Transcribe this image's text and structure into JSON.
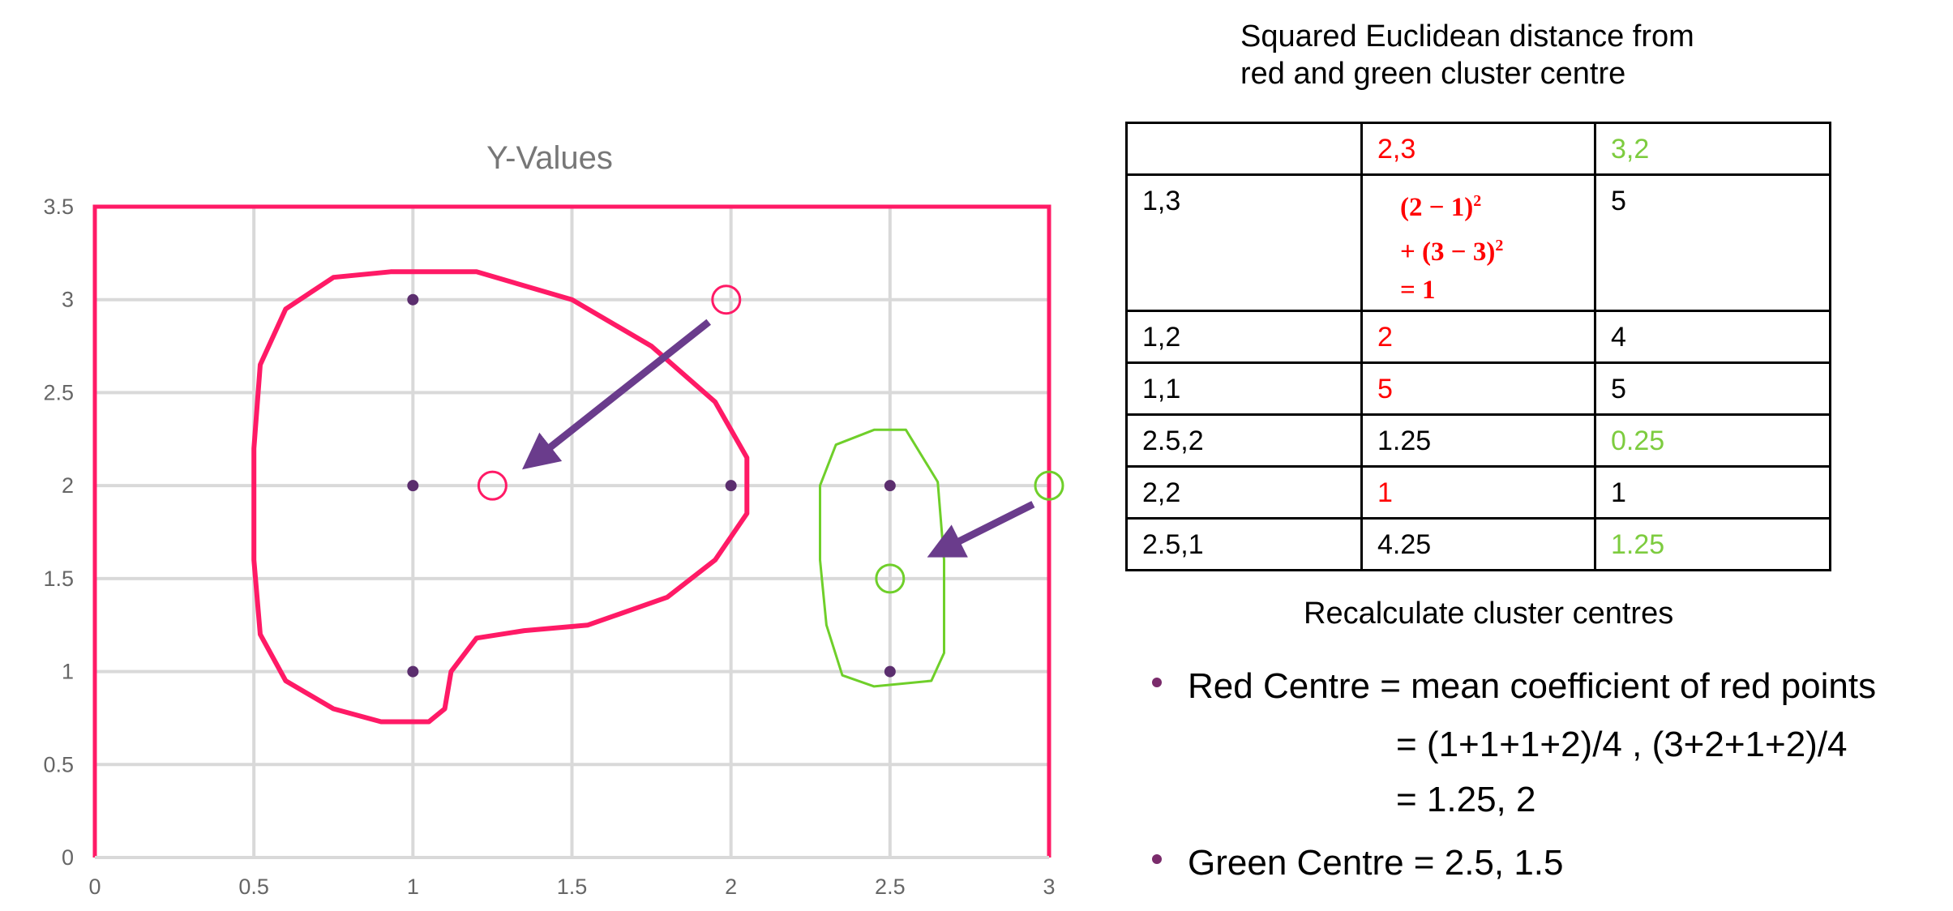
{
  "chart_data": {
    "type": "scatter",
    "title": "Y-Values",
    "x": [
      1,
      1,
      1,
      2,
      2.5,
      2.5
    ],
    "y": [
      3,
      2,
      1,
      2,
      2,
      1
    ],
    "xlim": [
      0,
      3
    ],
    "ylim": [
      0,
      3.5
    ],
    "x_ticks": [
      "0",
      "0.5",
      "1",
      "1.5",
      "2",
      "2.5",
      "3"
    ],
    "y_ticks": [
      "0",
      "0.5",
      "1",
      "1.5",
      "2",
      "2.5",
      "3",
      "3.5"
    ],
    "grid": true,
    "marker_color": "#5b2e6e",
    "annotations": {
      "red_cluster_color": "#ff1a66",
      "green_cluster_color": "#6fcf2a",
      "arrow_color": "#6a3c8c",
      "red_centre_old": [
        2,
        3
      ],
      "red_centre_new": [
        1.25,
        2
      ],
      "green_centre_old": [
        3,
        2
      ],
      "green_centre_new": [
        2.5,
        1.5
      ]
    }
  },
  "distance_title": [
    "Squared Euclidean distance from",
    "red and green cluster centre"
  ],
  "table": {
    "headers": [
      "",
      "2,3",
      "3,2"
    ],
    "formula": [
      "(2 − 1)",
      "+ (3 − 3)",
      "= 1"
    ],
    "formula_exp": "2",
    "rows": [
      {
        "point": "1,3",
        "red": "",
        "green": "5",
        "highlight": "red"
      },
      {
        "point": "1,2",
        "red": "2",
        "green": "4",
        "highlight": "red"
      },
      {
        "point": "1,1",
        "red": "5",
        "green": "5",
        "highlight": "red"
      },
      {
        "point": "2.5,2",
        "red": "1.25",
        "green": "0.25",
        "highlight": "green"
      },
      {
        "point": "2,2",
        "red": "1",
        "green": "1",
        "highlight": "red"
      },
      {
        "point": "2.5,1",
        "red": "4.25",
        "green": "1.25",
        "highlight": "green"
      }
    ]
  },
  "recalc": {
    "title": "Recalculate cluster centres",
    "red_line1": "Red Centre = mean coefficient of red points",
    "red_line2": "= (1+1+1+2)/4 , (3+2+1+2)/4",
    "red_line3": "= 1.25, 2",
    "green_line": "Green Centre = 2.5, 1.5"
  }
}
